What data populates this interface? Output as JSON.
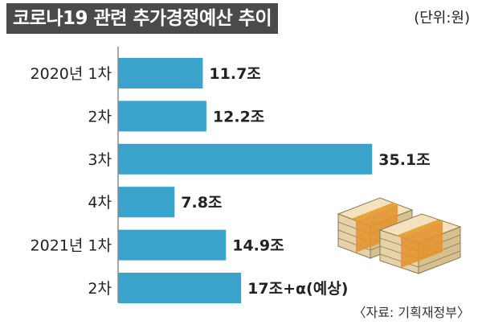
{
  "header": {
    "title": "코로나19 관련 추가경정예산 추이",
    "unit": "(단위:원)"
  },
  "source": "〈자료: 기획재정부〉",
  "colors": {
    "bar": "#3aa3cc",
    "title_bg": "#4a4a4a"
  },
  "icons": {
    "decoration": "money-stack-icon"
  },
  "chart_data": {
    "type": "bar",
    "orientation": "horizontal",
    "title": "코로나19 관련 추가경정예산 추이",
    "unit": "(단위:원)",
    "categories": [
      "2020년 1차",
      "2차",
      "3차",
      "4차",
      "2021년 1차",
      "2차"
    ],
    "values": [
      11.7,
      12.2,
      35.1,
      7.8,
      14.9,
      17
    ],
    "value_labels": [
      "11.7조",
      "12.2조",
      "35.1조",
      "7.8조",
      "14.9조",
      "17조+α(예상)"
    ],
    "xlim": [
      0,
      40
    ],
    "grid": false,
    "legend": "none"
  }
}
